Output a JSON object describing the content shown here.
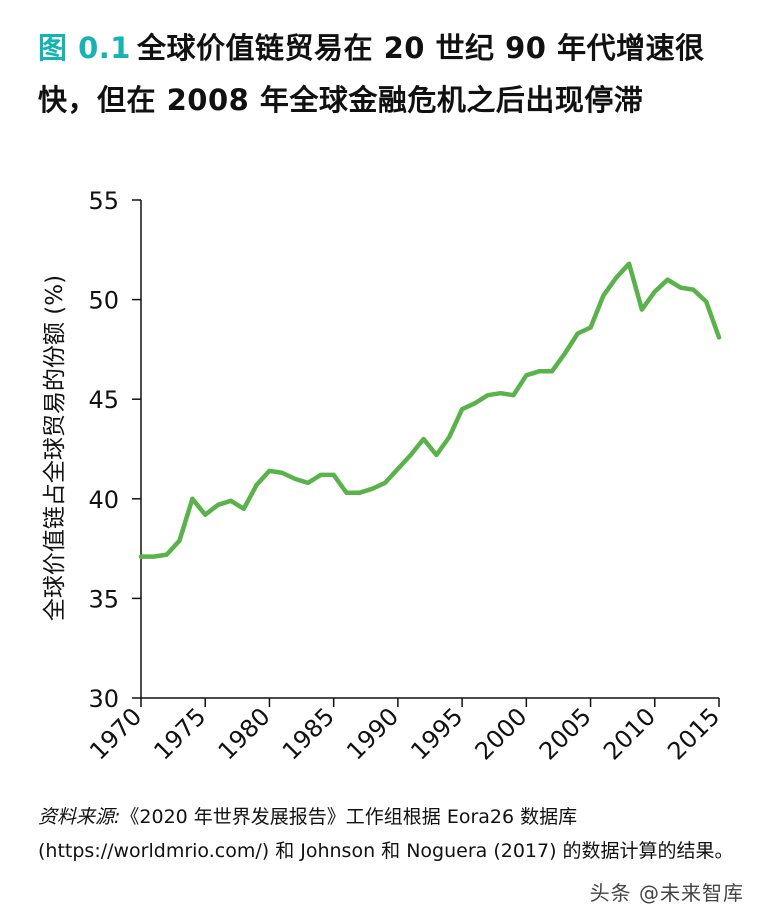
{
  "title": {
    "figure_label": "图 0.1",
    "text": "全球价值链贸易在 20 世纪 90 年代增速很快，但在 2008 年全球金融危机之后出现停滞"
  },
  "chart_data": {
    "type": "line",
    "title": "",
    "xlabel": "",
    "ylabel": "全球价值链占全球贸易的份额 (%)",
    "xlim": [
      1970,
      2015
    ],
    "ylim": [
      30,
      55
    ],
    "x_ticks": [
      1970,
      1975,
      1980,
      1985,
      1990,
      1995,
      2000,
      2005,
      2010,
      2015
    ],
    "y_ticks": [
      30,
      35,
      40,
      45,
      50,
      55
    ],
    "line_color": "#5ab24a",
    "grid": false,
    "series": [
      {
        "x": [
          1970,
          1971,
          1972,
          1973,
          1974,
          1975,
          1976,
          1977,
          1978,
          1979,
          1980,
          1981,
          1982,
          1983,
          1984,
          1985,
          1986,
          1987,
          1988,
          1989,
          1990,
          1991,
          1992,
          1993,
          1994,
          1995,
          1996,
          1997,
          1998,
          1999,
          2000,
          2001,
          2002,
          2003,
          2004,
          2005,
          2006,
          2007,
          2008,
          2009,
          2010,
          2011,
          2012,
          2013,
          2014,
          2015
        ],
        "values": [
          37.1,
          37.1,
          37.2,
          37.9,
          40.0,
          39.2,
          39.7,
          39.9,
          39.5,
          40.7,
          41.4,
          41.3,
          41.0,
          40.8,
          41.2,
          41.2,
          40.3,
          40.3,
          40.5,
          40.8,
          41.5,
          42.2,
          43.0,
          42.2,
          43.1,
          44.5,
          44.8,
          45.2,
          45.3,
          45.2,
          46.2,
          46.4,
          46.4,
          47.3,
          48.3,
          48.6,
          50.2,
          51.1,
          51.8,
          49.5,
          50.4,
          51.0,
          50.6,
          50.5,
          49.9,
          48.1
        ]
      }
    ]
  },
  "source": {
    "label": "资料来源:",
    "text": "《2020 年世界发展报告》工作组根据 Eora26 数据库 (https://worldmrio.com/) 和 Johnson 和 Noguera (2017) 的数据计算的结果。"
  },
  "watermark": "头条 @未来智库"
}
